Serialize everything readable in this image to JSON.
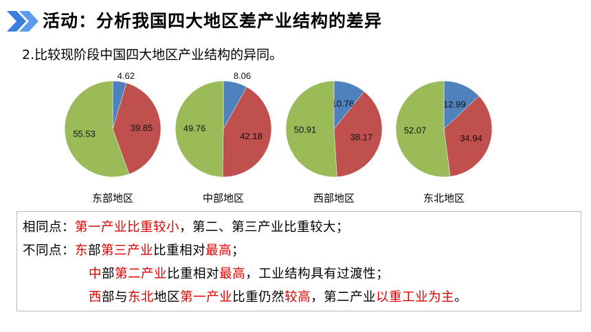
{
  "header": {
    "title": "活动：分析我国四大地区差产业结构的差异",
    "subtitle": "2.比较现阶段中国四大地区产业结构的异同。",
    "icon": "double-chevron-icon",
    "icon_color": "#3a7ee0"
  },
  "colors": {
    "primary": "#4f81bd",
    "secondary": "#c0504d",
    "tertiary": "#9bbb59",
    "highlight": "#e00000"
  },
  "chart_data": [
    {
      "type": "pie",
      "title": "东部地区",
      "labels": [
        "4.62",
        "39.85",
        "55.53"
      ],
      "values": [
        4.62,
        39.85,
        55.53
      ]
    },
    {
      "type": "pie",
      "title": "中部地区",
      "labels": [
        "8.06",
        "42.18",
        "49.76"
      ],
      "values": [
        8.06,
        42.18,
        49.76
      ]
    },
    {
      "type": "pie",
      "title": "西部地区",
      "labels": [
        "10.76",
        "38.17",
        "50.91"
      ],
      "values": [
        10.76,
        38.17,
        50.91
      ]
    },
    {
      "type": "pie",
      "title": "东北地区",
      "labels": [
        "12.99",
        "34.94",
        "52.07"
      ],
      "values": [
        12.99,
        34.94,
        52.07
      ]
    }
  ],
  "summary": {
    "lines": [
      [
        {
          "t": "相同点：",
          "r": false
        },
        {
          "t": "第一产业比重较小",
          "r": true
        },
        {
          "t": "，第二、第三产业比重较大；",
          "r": false
        }
      ],
      [
        {
          "t": "不同点：",
          "r": false
        },
        {
          "t": "东",
          "r": true
        },
        {
          "t": "部",
          "r": false
        },
        {
          "t": "第三产业",
          "r": true
        },
        {
          "t": "比重相对",
          "r": false
        },
        {
          "t": "最高",
          "r": true
        },
        {
          "t": "；",
          "r": false
        }
      ],
      [
        {
          "t": "中",
          "r": true
        },
        {
          "t": "部",
          "r": false
        },
        {
          "t": "第二产业",
          "r": true
        },
        {
          "t": "比重相对",
          "r": false
        },
        {
          "t": "最高",
          "r": true
        },
        {
          "t": "，工业结构具有过渡性；",
          "r": false
        }
      ],
      [
        {
          "t": "西",
          "r": true
        },
        {
          "t": "部与",
          "r": false
        },
        {
          "t": "东北",
          "r": true
        },
        {
          "t": "地区",
          "r": false
        },
        {
          "t": "第一产业",
          "r": true
        },
        {
          "t": "比重仍然",
          "r": false
        },
        {
          "t": "较高",
          "r": true
        },
        {
          "t": "，第二产业",
          "r": false
        },
        {
          "t": "以重工业为主",
          "r": true
        },
        {
          "t": "。",
          "r": false
        }
      ]
    ]
  }
}
